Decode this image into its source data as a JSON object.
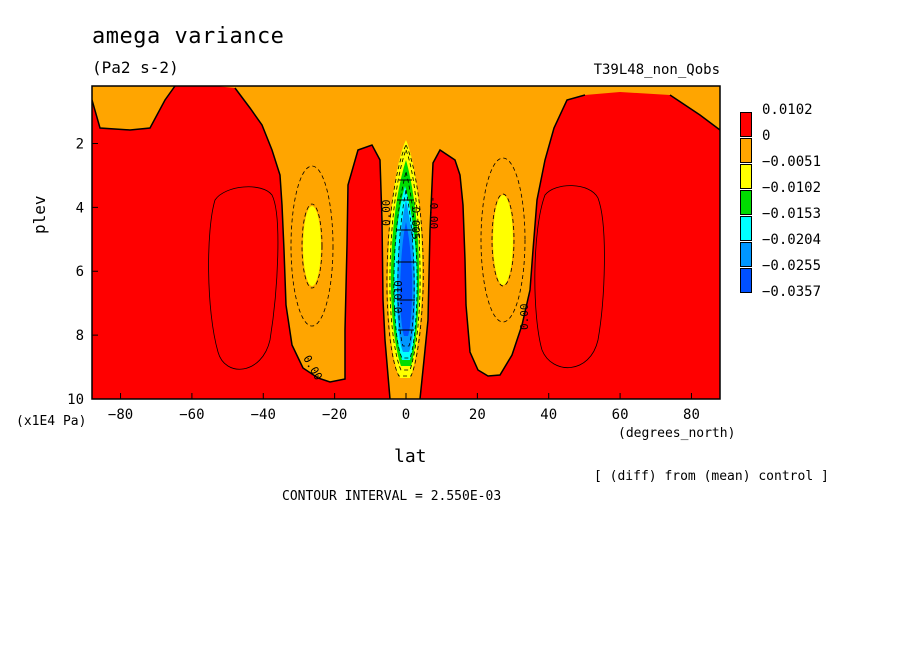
{
  "header": {
    "title": "amega variance",
    "units": "(Pa2 s-2)",
    "experiment": "T39L48_non_Qobs"
  },
  "footer": {
    "diff_note": "[ (diff) from (mean) control ]",
    "contour_interval": "CONTOUR INTERVAL = 2.550E-03"
  },
  "chart_data": {
    "type": "heatmap",
    "title": "amega variance",
    "subtitle": "(Pa2 s-2)",
    "xlabel": "lat",
    "xunit": "(degrees_north)",
    "ylabel": "plev",
    "yunit": "(x1E4 Pa)",
    "xlim": [
      -88,
      88
    ],
    "ylim": [
      10,
      0.2
    ],
    "x_ticks": [
      -80,
      -60,
      -40,
      -20,
      0,
      20,
      40,
      60,
      80
    ],
    "y_ticks": [
      2,
      4,
      6,
      8,
      10
    ],
    "colorbar": {
      "levels": [
        "0.0102",
        "0",
        "-0.0051",
        "-0.0102",
        "-0.0153",
        "-0.0204",
        "-0.0255",
        "-0.0357"
      ],
      "colors": [
        "#ff0000",
        "#ffa500",
        "#ffff00",
        "#00dd00",
        "#00ffff",
        "#0096ff",
        "#0050ff"
      ]
    },
    "contour_labels": [
      "0.00",
      "0.00",
      "0.00",
      "-0.00",
      "-0.005",
      "-0.010"
    ],
    "features": [
      {
        "region": "southern red lobe",
        "lat_range": [
          -88,
          -12
        ],
        "value_band": "0 to 0.0102"
      },
      {
        "region": "southern yellow core",
        "lat": -27,
        "plev_range": [
          3.9,
          6.4
        ],
        "value_band": "-0.0102 to -0.0051"
      },
      {
        "region": "equatorial minimum",
        "lat": 0,
        "plev_range": [
          2.6,
          9.0
        ],
        "value_band": "-0.0357 to -0.0051"
      },
      {
        "region": "northern yellow core",
        "lat": 28,
        "plev_range": [
          3.7,
          6.4
        ],
        "value_band": "-0.0102 to -0.0051"
      },
      {
        "region": "northern red lobe",
        "lat_range": [
          12,
          88
        ],
        "value_band": "0 to 0.0102"
      }
    ]
  }
}
